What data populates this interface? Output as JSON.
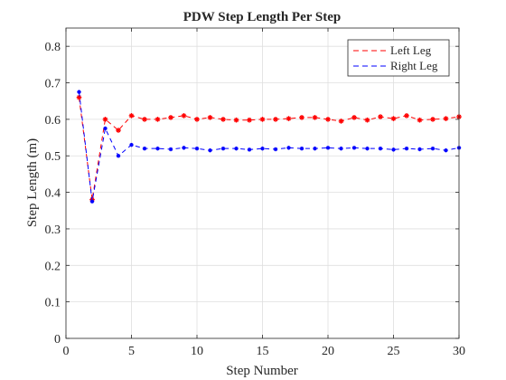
{
  "chart_data": {
    "type": "line",
    "title": "PDW Step Length Per Step",
    "xlabel": "Step Number",
    "ylabel": "Step Length (m)",
    "xlim": [
      0,
      30
    ],
    "ylim": [
      0,
      0.85
    ],
    "xticks": [
      0,
      5,
      10,
      15,
      20,
      25,
      30
    ],
    "yticks": [
      0,
      0.1,
      0.2,
      0.3,
      0.4,
      0.5,
      0.6,
      0.7,
      0.8
    ],
    "xtick_labels": [
      "0",
      "5",
      "10",
      "15",
      "20",
      "25",
      "30"
    ],
    "ytick_labels": [
      "0",
      "0.1",
      "0.2",
      "0.3",
      "0.4",
      "0.5",
      "0.6",
      "0.7",
      "0.8"
    ],
    "grid": true,
    "legend_position": "top-right",
    "x": [
      1,
      2,
      3,
      4,
      5,
      6,
      7,
      8,
      9,
      10,
      11,
      12,
      13,
      14,
      15,
      16,
      17,
      18,
      19,
      20,
      21,
      22,
      23,
      24,
      25,
      26,
      27,
      28,
      29,
      30
    ],
    "series": [
      {
        "name": "Left Leg",
        "color": "#ff0000",
        "marker_color": "#ff0000",
        "line_style": "dashed",
        "values": [
          0.66,
          0.38,
          0.6,
          0.57,
          0.61,
          0.6,
          0.6,
          0.605,
          0.61,
          0.6,
          0.605,
          0.6,
          0.598,
          0.598,
          0.6,
          0.6,
          0.602,
          0.605,
          0.605,
          0.6,
          0.595,
          0.605,
          0.598,
          0.607,
          0.602,
          0.61,
          0.598,
          0.6,
          0.602,
          0.607
        ]
      },
      {
        "name": "Right Leg",
        "color": "#0000ff",
        "marker_color": "#0000ff",
        "line_style": "dashed",
        "values": [
          0.675,
          0.375,
          0.575,
          0.5,
          0.53,
          0.52,
          0.52,
          0.518,
          0.522,
          0.52,
          0.515,
          0.52,
          0.52,
          0.517,
          0.52,
          0.518,
          0.522,
          0.52,
          0.52,
          0.522,
          0.52,
          0.522,
          0.52,
          0.52,
          0.517,
          0.52,
          0.518,
          0.52,
          0.515,
          0.522
        ]
      }
    ]
  }
}
